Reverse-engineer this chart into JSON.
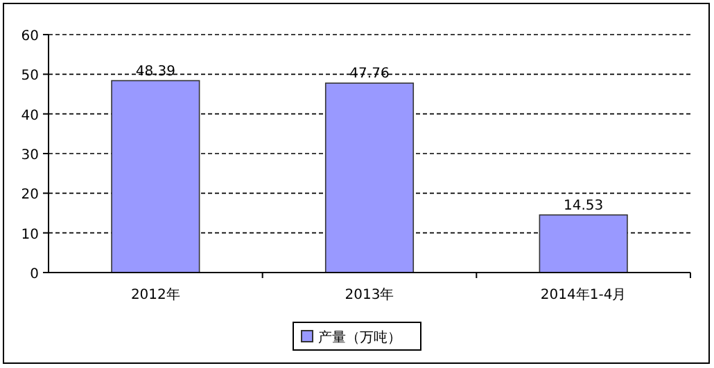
{
  "chart_data": {
    "type": "bar",
    "categories": [
      "2012年",
      "2013年",
      "2014年1-4月"
    ],
    "series": [
      {
        "name": "产量（万吨）",
        "color": "#9999ff",
        "values": [
          48.39,
          47.76,
          14.53
        ]
      }
    ],
    "ylim": [
      0,
      60
    ],
    "yticks": [
      0,
      10,
      20,
      30,
      40,
      50,
      60
    ],
    "grid": "y",
    "legend": "bottom",
    "data_labels": true
  }
}
